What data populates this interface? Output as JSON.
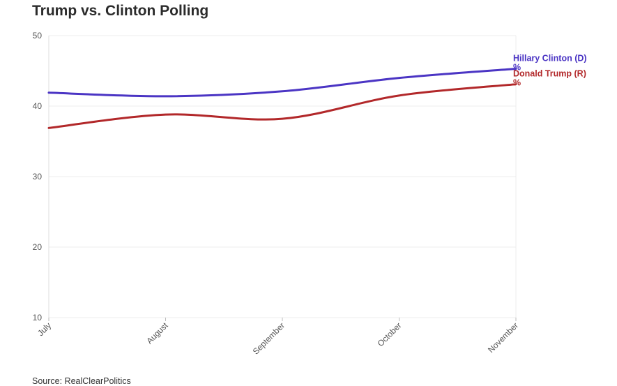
{
  "title": "Trump vs. Clinton Polling",
  "source": "Source: RealClearPolitics",
  "colors": {
    "clinton": "#4b35c4",
    "trump": "#b2282a",
    "grid": "#ececec",
    "axis": "#dddddd"
  },
  "chart_data": {
    "type": "line",
    "title": "Trump vs. Clinton Polling",
    "xlabel": "",
    "ylabel": "",
    "ylim": [
      10,
      50
    ],
    "yticks": [
      10,
      20,
      30,
      40,
      50
    ],
    "grid": true,
    "x_ticks": [
      "July",
      "August",
      "September",
      "October",
      "November"
    ],
    "x": [
      0,
      1,
      2,
      3,
      4
    ],
    "series": [
      {
        "name": "Hillary Clinton (D)",
        "unit": "%",
        "color": "#4b35c4",
        "values": [
          41.9,
          41.4,
          42.1,
          44.0,
          45.3
        ]
      },
      {
        "name": "Donald Trump (R)",
        "unit": "%",
        "color": "#b2282a",
        "values": [
          36.9,
          38.8,
          38.2,
          41.5,
          43.1
        ]
      }
    ]
  }
}
